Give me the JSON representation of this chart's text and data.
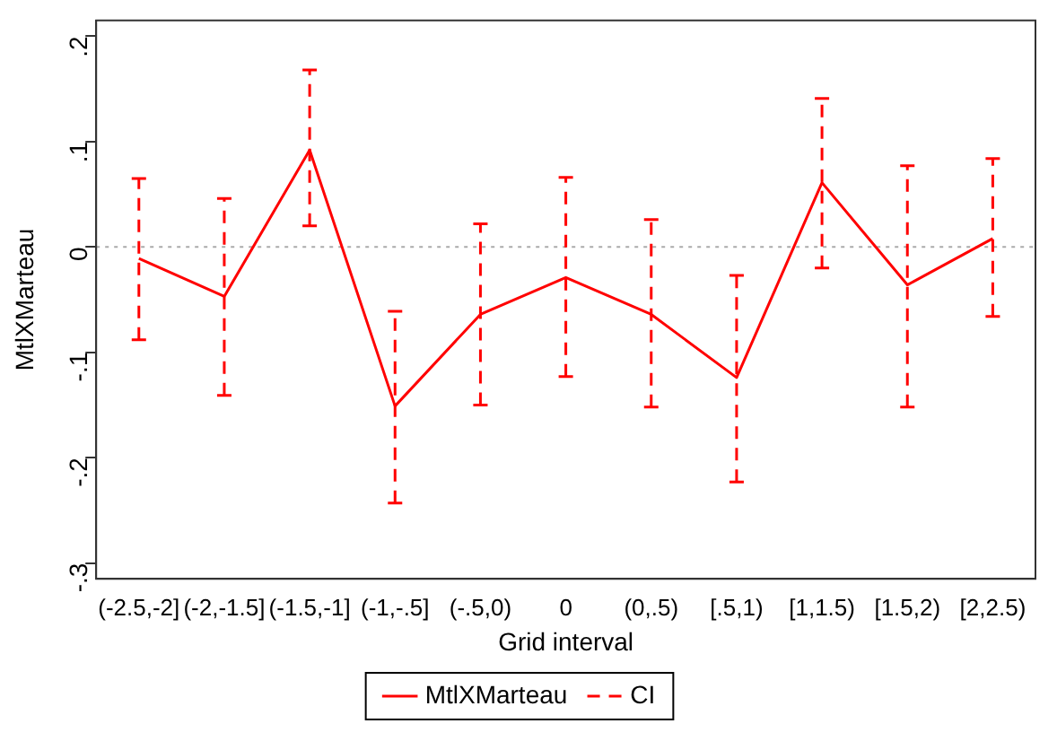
{
  "chart_data": {
    "type": "line",
    "xlabel": "Grid interval",
    "ylabel": "MtlXMarteau",
    "annotations": [
      "CI"
    ],
    "categories": [
      "(-2.5,-2]",
      "(-2,-1.5]",
      "(-1.5,-1]",
      "(-1,-.5]",
      "(-.5,0)",
      "0",
      "(0,.5)",
      "[.5,1)",
      "[1,1.5)",
      "[1.5,2)",
      "[2,2.5)"
    ],
    "series": [
      {
        "name": "MtlXMarteau",
        "color": "#ff0000",
        "line_style": "solid",
        "values": [
          -0.011,
          -0.047,
          0.092,
          -0.151,
          -0.064,
          -0.029,
          -0.064,
          -0.124,
          0.061,
          -0.036,
          0.008
        ],
        "errors": [
          [
            -0.088,
            0.065
          ],
          [
            -0.141,
            0.046
          ],
          [
            0.02,
            0.168
          ],
          [
            -0.243,
            -0.061
          ],
          [
            -0.15,
            0.022
          ],
          [
            -0.123,
            0.066
          ],
          [
            -0.152,
            0.026
          ],
          [
            -0.223,
            -0.027
          ],
          [
            -0.02,
            0.141
          ],
          [
            -0.152,
            0.077
          ],
          [
            -0.066,
            0.084
          ]
        ]
      }
    ],
    "ylim": [
      -0.315,
      0.215
    ],
    "yticks": [
      {
        "value": -0.3,
        "label": "-.3"
      },
      {
        "value": -0.2,
        "label": "-.2"
      },
      {
        "value": -0.1,
        "label": "-.1"
      },
      0,
      {
        "value": 0.1,
        "label": ".1"
      },
      {
        "value": 0.2,
        "label": ".2"
      }
    ],
    "ref_lines": [
      {
        "axis": "y",
        "value": 0,
        "color": "#aaaaaa",
        "line_style": "dotted"
      }
    ],
    "grid": false,
    "legend": "bottom",
    "marker": "none"
  }
}
